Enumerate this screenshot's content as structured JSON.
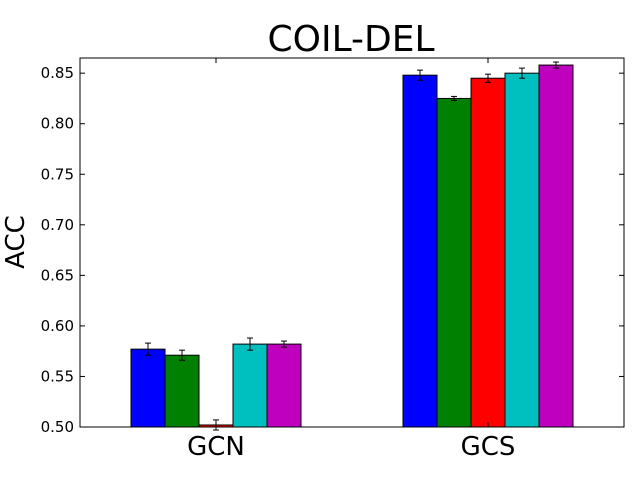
{
  "chart_data": {
    "type": "bar",
    "title": "COIL-DEL",
    "xlabel": "",
    "ylabel": "ACC",
    "ylim": [
      0.5,
      0.865
    ],
    "yticks": [
      "0.50",
      "0.55",
      "0.60",
      "0.65",
      "0.70",
      "0.75",
      "0.80",
      "0.85"
    ],
    "categories": [
      "GCN",
      "GCS"
    ],
    "series": [
      {
        "color": "#0000ff",
        "values": [
          0.577,
          0.848
        ],
        "errors": [
          0.006,
          0.005
        ]
      },
      {
        "color": "#008000",
        "values": [
          0.571,
          0.825
        ],
        "errors": [
          0.005,
          0.002
        ]
      },
      {
        "color": "#ff0000",
        "values": [
          0.502,
          0.845
        ],
        "errors": [
          0.005,
          0.004
        ]
      },
      {
        "color": "#00bfbf",
        "values": [
          0.582,
          0.85
        ],
        "errors": [
          0.006,
          0.005
        ]
      },
      {
        "color": "#bf00bf",
        "values": [
          0.582,
          0.858
        ],
        "errors": [
          0.003,
          0.003
        ]
      }
    ],
    "grid": false,
    "legend": "none"
  }
}
